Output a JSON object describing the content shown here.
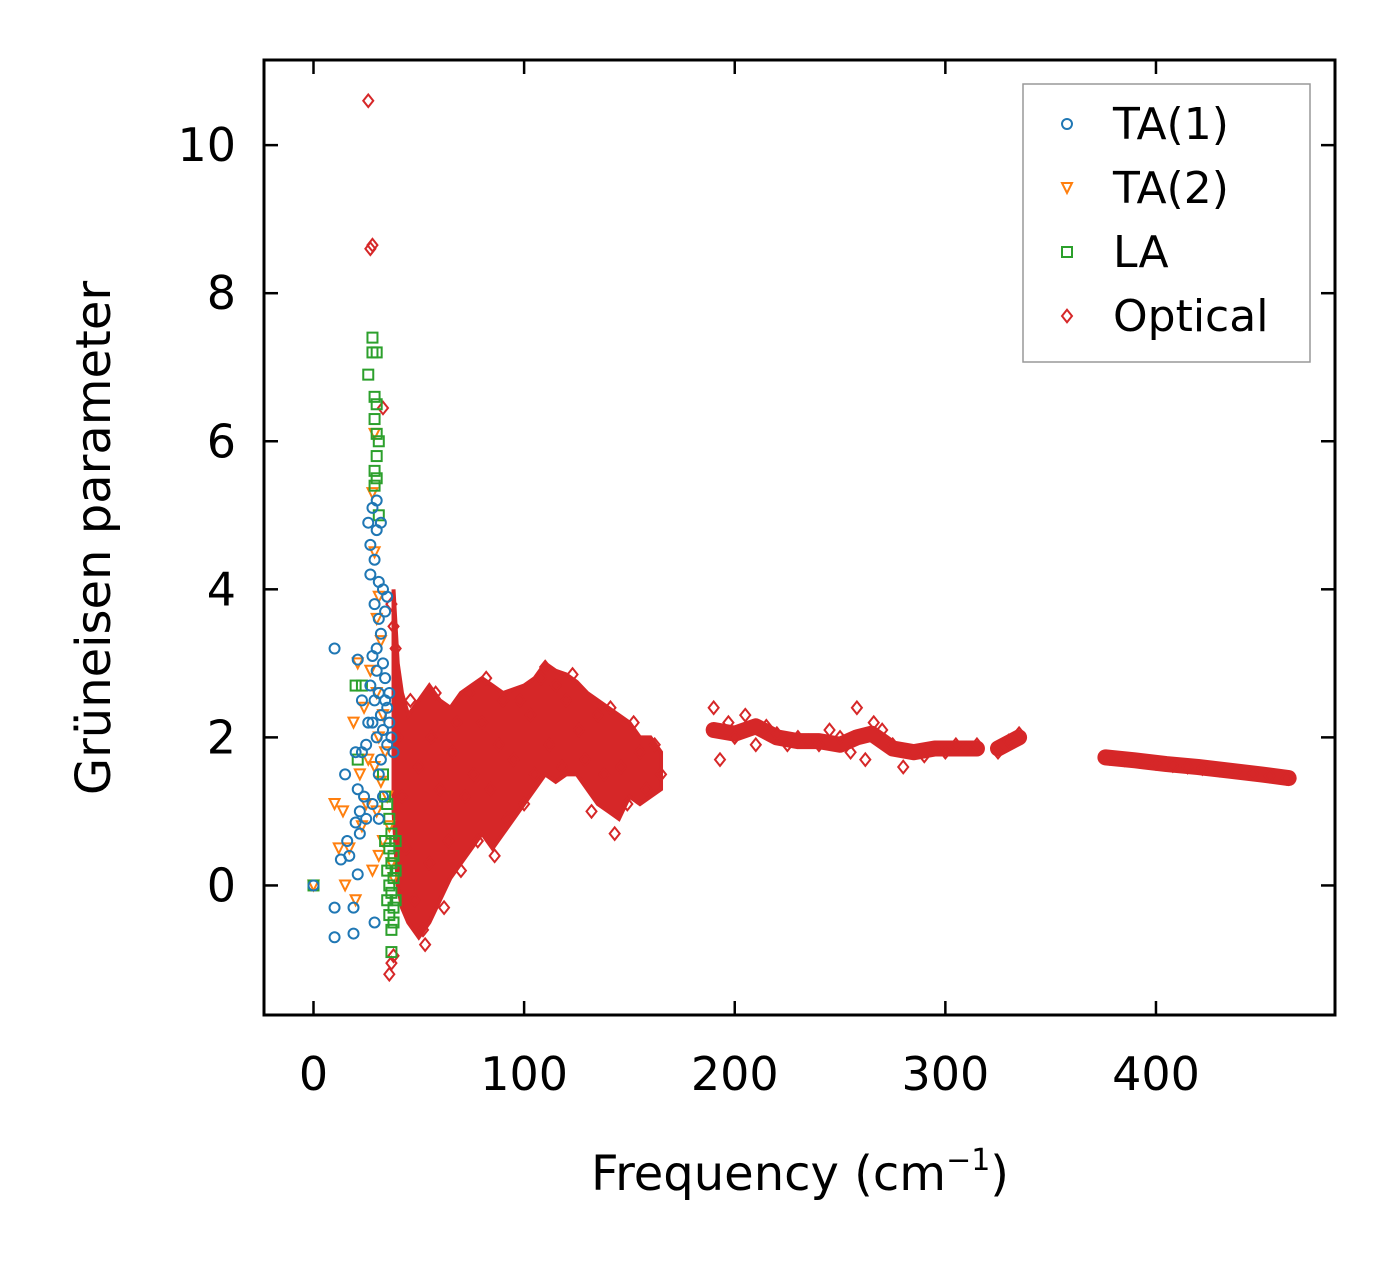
{
  "chart_data": {
    "type": "scatter",
    "xlabel": "Frequency (cm",
    "xlabel_sup": "−1",
    "xlabel_close": ")",
    "ylabel": "Grüneisen parameter",
    "xlim": [
      -23.5,
      485
    ],
    "ylim": [
      -1.75,
      11.15
    ],
    "xticks": [
      0,
      100,
      200,
      300,
      400
    ],
    "xtick_labels": [
      "0",
      "100",
      "200",
      "300",
      "400"
    ],
    "yticks": [
      0,
      2,
      4,
      6,
      8,
      10
    ],
    "ytick_labels": [
      "0",
      "2",
      "4",
      "6",
      "8",
      "10"
    ],
    "grid": false,
    "legend_position": "top-right",
    "series": [
      {
        "name": "TA(1)",
        "marker": "circle",
        "color": "#1f77b4",
        "points": [
          [
            0,
            0
          ],
          [
            10,
            3.2
          ],
          [
            10,
            -0.3
          ],
          [
            10,
            -0.7
          ],
          [
            13,
            0.35
          ],
          [
            15,
            1.5
          ],
          [
            16,
            0.6
          ],
          [
            17,
            0.4
          ],
          [
            19,
            -0.65
          ],
          [
            19,
            -0.3
          ],
          [
            20,
            0.85
          ],
          [
            20,
            1.8
          ],
          [
            21,
            1.3
          ],
          [
            21,
            0.15
          ],
          [
            21,
            3.05
          ],
          [
            22,
            0.7
          ],
          [
            22,
            1.0
          ],
          [
            23,
            1.8
          ],
          [
            23,
            2.5
          ],
          [
            24,
            1.2
          ],
          [
            25,
            1.9
          ],
          [
            25,
            0.9
          ],
          [
            26,
            2.2
          ],
          [
            26,
            4.9
          ],
          [
            27,
            2.7
          ],
          [
            27,
            4.2
          ],
          [
            27,
            4.6
          ],
          [
            28,
            3.1
          ],
          [
            28,
            5.1
          ],
          [
            28,
            2.2
          ],
          [
            28,
            1.1
          ],
          [
            29,
            -0.5
          ],
          [
            29,
            2.5
          ],
          [
            29,
            4.4
          ],
          [
            29,
            3.8
          ],
          [
            30,
            3.2
          ],
          [
            30,
            4.8
          ],
          [
            30,
            5.2
          ],
          [
            30,
            2.9
          ],
          [
            30,
            2.0
          ],
          [
            31,
            3.6
          ],
          [
            31,
            4.1
          ],
          [
            31,
            2.6
          ],
          [
            31,
            1.5
          ],
          [
            31,
            0.9
          ],
          [
            32,
            4.9
          ],
          [
            32,
            3.4
          ],
          [
            32,
            2.3
          ],
          [
            32,
            1.7
          ],
          [
            33,
            4.0
          ],
          [
            33,
            3.0
          ],
          [
            33,
            2.1
          ],
          [
            33,
            1.2
          ],
          [
            34,
            3.7
          ],
          [
            34,
            2.8
          ],
          [
            34,
            2.5
          ],
          [
            35,
            3.9
          ],
          [
            35,
            2.4
          ],
          [
            35,
            1.9
          ],
          [
            36,
            2.6
          ],
          [
            36,
            2.2
          ],
          [
            37,
            2.0
          ],
          [
            38,
            1.8
          ]
        ]
      },
      {
        "name": "TA(2)",
        "marker": "triangle-down",
        "color": "#ff7f0e",
        "points": [
          [
            0,
            0
          ],
          [
            10,
            1.1
          ],
          [
            12,
            0.5
          ],
          [
            14,
            1.0
          ],
          [
            15,
            0.0
          ],
          [
            17,
            0.5
          ],
          [
            19,
            2.2
          ],
          [
            20,
            -0.2
          ],
          [
            21,
            3.0
          ],
          [
            22,
            1.5
          ],
          [
            23,
            0.8
          ],
          [
            24,
            2.4
          ],
          [
            25,
            1.1
          ],
          [
            26,
            1.7
          ],
          [
            27,
            2.9
          ],
          [
            28,
            0.2
          ],
          [
            28,
            5.3
          ],
          [
            29,
            6.1
          ],
          [
            29,
            4.5
          ],
          [
            29,
            1.6
          ],
          [
            30,
            3.6
          ],
          [
            30,
            2.6
          ],
          [
            30,
            1.0
          ],
          [
            31,
            3.9
          ],
          [
            31,
            2.0
          ],
          [
            31,
            0.4
          ],
          [
            32,
            3.3
          ],
          [
            32,
            1.4
          ],
          [
            33,
            2.3
          ],
          [
            33,
            0.6
          ],
          [
            34,
            1.8
          ],
          [
            35,
            1.2
          ],
          [
            36,
            0.8
          ],
          [
            37,
            0.3
          ],
          [
            38,
            0.1
          ]
        ]
      },
      {
        "name": "LA",
        "marker": "square",
        "color": "#2ca02c",
        "points": [
          [
            0,
            0
          ],
          [
            20,
            2.7
          ],
          [
            21,
            1.7
          ],
          [
            23,
            2.7
          ],
          [
            26,
            6.9
          ],
          [
            28,
            7.4
          ],
          [
            28,
            7.2
          ],
          [
            29,
            6.6
          ],
          [
            29,
            6.3
          ],
          [
            29,
            5.6
          ],
          [
            29,
            5.4
          ],
          [
            30,
            7.2
          ],
          [
            30,
            6.5
          ],
          [
            30,
            6.1
          ],
          [
            30,
            5.8
          ],
          [
            30,
            5.5
          ],
          [
            31,
            5.0
          ],
          [
            31,
            6.0
          ],
          [
            33,
            1.5
          ],
          [
            34,
            1.2
          ],
          [
            34,
            0.6
          ],
          [
            35,
            1.1
          ],
          [
            35,
            0.2
          ],
          [
            35,
            -0.2
          ],
          [
            36,
            0.9
          ],
          [
            36,
            0.5
          ],
          [
            36,
            0.0
          ],
          [
            36,
            -0.4
          ],
          [
            37,
            0.7
          ],
          [
            37,
            0.3
          ],
          [
            37,
            -0.1
          ],
          [
            37,
            -0.6
          ],
          [
            37,
            -0.9
          ],
          [
            38,
            0.4
          ],
          [
            38,
            0.1
          ],
          [
            38,
            -0.3
          ],
          [
            38,
            -0.5
          ],
          [
            39,
            0.6
          ],
          [
            39,
            0.2
          ],
          [
            39,
            -0.2
          ]
        ]
      },
      {
        "name": "Optical",
        "marker": "diamond",
        "color": "#d62728",
        "points": [
          [
            26,
            10.6
          ],
          [
            27,
            8.6
          ],
          [
            28,
            8.65
          ],
          [
            33,
            6.45
          ],
          [
            37,
            3.8
          ],
          [
            38,
            3.5
          ],
          [
            39,
            3.2
          ],
          [
            36,
            -1.2
          ],
          [
            37,
            -1.05
          ],
          [
            38,
            -0.95
          ],
          [
            40,
            2.0
          ],
          [
            42,
            1.2
          ],
          [
            44,
            0.5
          ],
          [
            46,
            2.5
          ],
          [
            48,
            -0.2
          ],
          [
            50,
            1.6
          ],
          [
            52,
            -0.6
          ],
          [
            53,
            -0.8
          ],
          [
            55,
            0.3
          ],
          [
            56,
            2.0
          ],
          [
            58,
            2.6
          ],
          [
            60,
            1.3
          ],
          [
            62,
            -0.3
          ],
          [
            64,
            0.6
          ],
          [
            66,
            1.8
          ],
          [
            68,
            2.2
          ],
          [
            70,
            0.2
          ],
          [
            72,
            1.2
          ],
          [
            74,
            2.6
          ],
          [
            76,
            1.5
          ],
          [
            78,
            0.6
          ],
          [
            80,
            2.2
          ],
          [
            82,
            2.8
          ],
          [
            84,
            1.3
          ],
          [
            86,
            0.4
          ],
          [
            88,
            1.9
          ],
          [
            90,
            2.5
          ],
          [
            92,
            0.9
          ],
          [
            95,
            1.7
          ],
          [
            98,
            2.5
          ],
          [
            100,
            1.1
          ],
          [
            103,
            2.3
          ],
          [
            105,
            1.5
          ],
          [
            108,
            2.8
          ],
          [
            110,
            2.95
          ],
          [
            112,
            1.9
          ],
          [
            115,
            2.7
          ],
          [
            118,
            1.6
          ],
          [
            120,
            2.5
          ],
          [
            123,
            2.85
          ],
          [
            126,
            2.1
          ],
          [
            129,
            1.7
          ],
          [
            132,
            1.0
          ],
          [
            135,
            2.3
          ],
          [
            138,
            1.5
          ],
          [
            141,
            2.4
          ],
          [
            143,
            0.7
          ],
          [
            146,
            1.6
          ],
          [
            149,
            1.1
          ],
          [
            152,
            2.2
          ],
          [
            155,
            1.8
          ],
          [
            158,
            1.3
          ],
          [
            162,
            1.9
          ],
          [
            165,
            1.5
          ],
          [
            190,
            2.4
          ],
          [
            193,
            1.7
          ],
          [
            197,
            2.2
          ],
          [
            200,
            2.0
          ],
          [
            205,
            2.3
          ],
          [
            210,
            1.9
          ],
          [
            215,
            2.15
          ],
          [
            220,
            2.05
          ],
          [
            225,
            1.9
          ],
          [
            230,
            2.0
          ],
          [
            235,
            1.95
          ],
          [
            240,
            1.9
          ],
          [
            245,
            2.1
          ],
          [
            250,
            2.0
          ],
          [
            255,
            1.8
          ],
          [
            258,
            2.4
          ],
          [
            262,
            1.7
          ],
          [
            266,
            2.2
          ],
          [
            270,
            2.1
          ],
          [
            275,
            1.9
          ],
          [
            280,
            1.6
          ],
          [
            285,
            1.8
          ],
          [
            290,
            1.75
          ],
          [
            295,
            1.85
          ],
          [
            300,
            1.8
          ],
          [
            305,
            1.9
          ],
          [
            310,
            1.85
          ],
          [
            315,
            1.9
          ],
          [
            325,
            1.8
          ],
          [
            330,
            1.95
          ],
          [
            335,
            2.05
          ],
          [
            378,
            1.72
          ],
          [
            385,
            1.7
          ],
          [
            392,
            1.68
          ],
          [
            400,
            1.65
          ],
          [
            408,
            1.62
          ],
          [
            415,
            1.6
          ],
          [
            422,
            1.58
          ],
          [
            430,
            1.56
          ],
          [
            438,
            1.54
          ],
          [
            446,
            1.51
          ],
          [
            454,
            1.48
          ],
          [
            462,
            1.45
          ]
        ]
      }
    ],
    "optical_band": [
      [
        38,
        4.0
      ],
      [
        40,
        3.0
      ],
      [
        42,
        2.6
      ],
      [
        45,
        2.3
      ],
      [
        50,
        2.5
      ],
      [
        55,
        2.7
      ],
      [
        60,
        2.5
      ],
      [
        65,
        2.4
      ],
      [
        70,
        2.6
      ],
      [
        75,
        2.7
      ],
      [
        80,
        2.8
      ],
      [
        85,
        2.7
      ],
      [
        90,
        2.6
      ],
      [
        95,
        2.65
      ],
      [
        100,
        2.7
      ],
      [
        105,
        2.8
      ],
      [
        110,
        3.0
      ],
      [
        115,
        2.9
      ],
      [
        120,
        2.85
      ],
      [
        125,
        2.75
      ],
      [
        130,
        2.6
      ],
      [
        135,
        2.5
      ],
      [
        140,
        2.4
      ],
      [
        145,
        2.3
      ],
      [
        150,
        2.2
      ],
      [
        155,
        2.0
      ],
      [
        160,
        2.0
      ],
      [
        165,
        1.8
      ],
      [
        165,
        1.3
      ],
      [
        160,
        1.2
      ],
      [
        155,
        1.1
      ],
      [
        150,
        1.2
      ],
      [
        145,
        0.9
      ],
      [
        140,
        1.0
      ],
      [
        135,
        1.1
      ],
      [
        130,
        1.3
      ],
      [
        125,
        1.5
      ],
      [
        120,
        1.5
      ],
      [
        115,
        1.4
      ],
      [
        110,
        1.5
      ],
      [
        105,
        1.3
      ],
      [
        100,
        1.1
      ],
      [
        95,
        0.9
      ],
      [
        90,
        0.7
      ],
      [
        85,
        0.5
      ],
      [
        80,
        0.7
      ],
      [
        75,
        0.5
      ],
      [
        70,
        0.3
      ],
      [
        65,
        0.1
      ],
      [
        60,
        -0.2
      ],
      [
        55,
        -0.5
      ],
      [
        50,
        -0.7
      ],
      [
        45,
        -0.5
      ],
      [
        42,
        -0.3
      ],
      [
        40,
        0.0
      ],
      [
        38,
        1.0
      ]
    ],
    "optical_segments": [
      [
        [
          190,
          2.1
        ],
        [
          200,
          2.05
        ],
        [
          210,
          2.15
        ],
        [
          220,
          2.0
        ],
        [
          230,
          1.95
        ],
        [
          240,
          1.95
        ],
        [
          250,
          1.9
        ],
        [
          258,
          2.0
        ],
        [
          265,
          2.05
        ],
        [
          275,
          1.85
        ],
        [
          285,
          1.8
        ],
        [
          295,
          1.85
        ],
        [
          305,
          1.85
        ],
        [
          315,
          1.85
        ]
      ],
      [
        [
          325,
          1.85
        ],
        [
          335,
          2.0
        ]
      ],
      [
        [
          376,
          1.73
        ],
        [
          390,
          1.69
        ],
        [
          405,
          1.64
        ],
        [
          420,
          1.6
        ],
        [
          435,
          1.55
        ],
        [
          450,
          1.5
        ],
        [
          463,
          1.45
        ]
      ]
    ]
  }
}
